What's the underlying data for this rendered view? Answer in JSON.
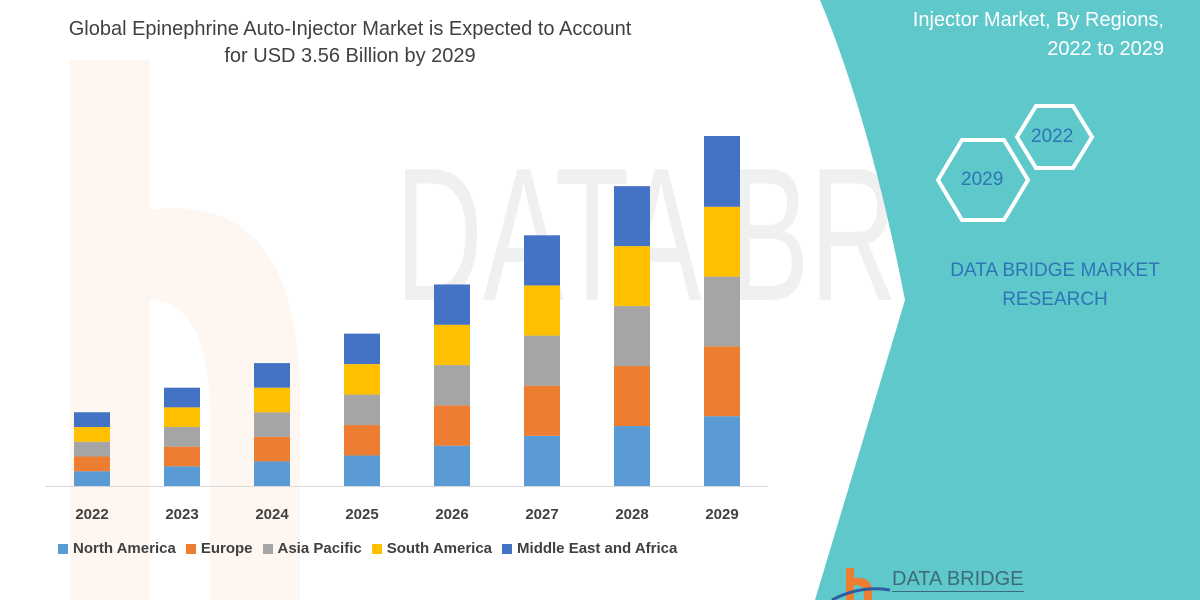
{
  "title": "Global Epinephrine Auto-Injector Market is Expected to Account for USD 3.56 Billion by 2029",
  "side_panel": {
    "title_lines": [
      "Injector Market, By Regions,",
      "2022 to 2029"
    ],
    "hex_labels": [
      "2022",
      "2029"
    ],
    "brand_lines": [
      "DATA BRIDGE MARKET",
      "RESEARCH"
    ],
    "logo_text": "DATA BRIDGE",
    "color": "#5ec8cb"
  },
  "chart_data": {
    "type": "bar",
    "stacked": true,
    "title": "Global Epinephrine Auto-Injector Market is Expected to Account for USD 3.56 Billion by 2029",
    "xlabel": "",
    "ylabel": "",
    "unit": "USD Billion (estimated, scaled so 2029 total = 3.56)",
    "ylim": [
      0,
      3.6
    ],
    "grid": false,
    "legend_position": "bottom",
    "categories": [
      "2022",
      "2023",
      "2024",
      "2025",
      "2026",
      "2027",
      "2028",
      "2029"
    ],
    "series": [
      {
        "name": "North America",
        "color": "#5b9bd5",
        "values": [
          0.15,
          0.2,
          0.25,
          0.31,
          0.41,
          0.51,
          0.61,
          0.71
        ]
      },
      {
        "name": "Europe",
        "color": "#ed7d31",
        "values": [
          0.15,
          0.2,
          0.25,
          0.31,
          0.41,
          0.51,
          0.61,
          0.71
        ]
      },
      {
        "name": "Asia Pacific",
        "color": "#a5a5a5",
        "values": [
          0.15,
          0.2,
          0.25,
          0.31,
          0.41,
          0.51,
          0.61,
          0.71
        ]
      },
      {
        "name": "South America",
        "color": "#ffc000",
        "values": [
          0.15,
          0.2,
          0.25,
          0.31,
          0.41,
          0.51,
          0.61,
          0.71
        ]
      },
      {
        "name": "Middle East and Africa",
        "color": "#4472c4",
        "values": [
          0.15,
          0.2,
          0.25,
          0.31,
          0.41,
          0.51,
          0.61,
          0.72
        ]
      }
    ]
  }
}
